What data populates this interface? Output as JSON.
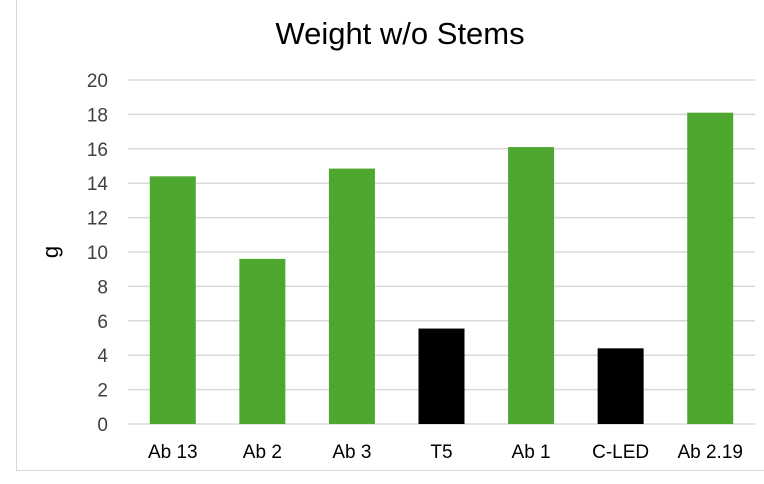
{
  "chart_data": {
    "type": "bar",
    "title": "Weight w/o Stems",
    "xlabel": "",
    "ylabel": "g",
    "ylim": [
      0,
      20
    ],
    "yticks": [
      0,
      2,
      4,
      6,
      8,
      10,
      12,
      14,
      16,
      18,
      20
    ],
    "grid": true,
    "legend": "none",
    "categories": [
      "Ab 13",
      "Ab 2",
      "Ab 3",
      "T5",
      "Ab 1",
      "C-LED",
      "Ab 2.19"
    ],
    "values": [
      14.4,
      9.6,
      14.85,
      5.55,
      16.1,
      4.4,
      18.1
    ],
    "bar_colors": [
      "#4ea72e",
      "#4ea72e",
      "#4ea72e",
      "#000000",
      "#4ea72e",
      "#000000",
      "#4ea72e"
    ],
    "gridline_color": "#d9d9d9",
    "text_color": "#404040"
  }
}
